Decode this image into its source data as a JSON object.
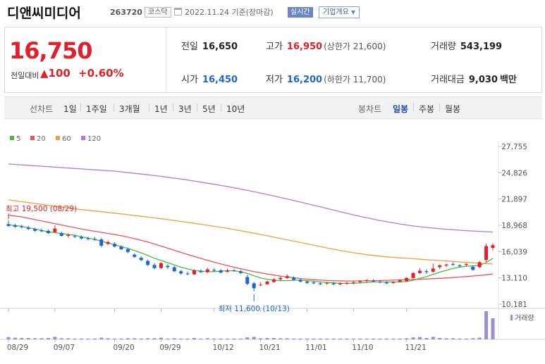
{
  "header": {
    "name": "디앤씨미디어",
    "code": "263720",
    "market": "코스닥",
    "date": "2022.11.24 기준(장마감)",
    "realtime": "실시간",
    "corp_overview": "기업개요",
    "calendar_icon": "calendar-icon",
    "caret_icon": "chevron-down-icon"
  },
  "summary": {
    "price": "16,750",
    "change_label": "전일대비",
    "change_arrow": "▲",
    "change_value": "100",
    "change_pct": "+0.60%",
    "prev": {
      "label": "전일",
      "value": "16,650"
    },
    "open": {
      "label": "시가",
      "value": "16,450"
    },
    "high": {
      "label": "고가",
      "value": "16,950",
      "sub": "(상한가 21,600)"
    },
    "low": {
      "label": "저가",
      "value": "16,200",
      "sub": "(하한가 11,700)"
    },
    "volume": {
      "label": "거래량",
      "value": "543,199"
    },
    "amount": {
      "label": "거래대금",
      "value": "9,030",
      "unit": "백만"
    },
    "colors": {
      "up": "#e0202a",
      "down": "#1c64d4"
    }
  },
  "period_bar": {
    "line_label": "선차트",
    "line_items": [
      "1일",
      "1주일",
      "3개월",
      "1년",
      "3년",
      "5년",
      "10년"
    ],
    "candle_label": "봉차트",
    "candle_items": [
      "일봉",
      "주봉",
      "월봉"
    ],
    "candle_selected": "일봉"
  },
  "chart_data": {
    "type": "candlestick",
    "legend": [
      {
        "name": "5",
        "color": "#4cb944"
      },
      {
        "name": "20",
        "color": "#ea5455"
      },
      {
        "name": "60",
        "color": "#f59d3d"
      },
      {
        "name": "120",
        "color": "#b07ad8"
      }
    ],
    "y_ticks": [
      "27,755",
      "24,826",
      "21,897",
      "18,968",
      "16,039",
      "13,110",
      "10,181"
    ],
    "ylim": [
      10181,
      27755
    ],
    "x_ticks": [
      "08/29",
      "09/07",
      "09/20",
      "09/29",
      "10/12",
      "10/21",
      "11/01",
      "11/10",
      "11/21"
    ],
    "annotation_high": "최고 19,500 (08/29)",
    "annotation_low": "최저 11,600 (10/13)",
    "volume_label": "거래량",
    "candles": [
      [
        19100,
        19500,
        18800,
        18900
      ],
      [
        18950,
        19150,
        18700,
        18800
      ],
      [
        18850,
        19050,
        18600,
        18750
      ],
      [
        18700,
        18900,
        18450,
        18550
      ],
      [
        18550,
        18700,
        18250,
        18350
      ],
      [
        18400,
        18600,
        18200,
        18300
      ],
      [
        18350,
        18500,
        18000,
        18100
      ],
      [
        18200,
        18950,
        18100,
        18600
      ],
      [
        18100,
        18250,
        17700,
        17800
      ],
      [
        17800,
        18050,
        17600,
        17900
      ],
      [
        17750,
        17950,
        17550,
        17700
      ],
      [
        17650,
        17850,
        17400,
        17500
      ],
      [
        17500,
        17700,
        17300,
        17450
      ],
      [
        17450,
        17650,
        17250,
        17350
      ],
      [
        17400,
        17550,
        16500,
        16700
      ],
      [
        16900,
        17250,
        16800,
        17100
      ],
      [
        16900,
        17100,
        16500,
        16600
      ],
      [
        16600,
        16750,
        16200,
        16300
      ],
      [
        16300,
        16500,
        15850,
        16000
      ],
      [
        15700,
        15850,
        15350,
        15450
      ],
      [
        15350,
        15500,
        14950,
        15100
      ],
      [
        15000,
        15150,
        14450,
        14550
      ],
      [
        14550,
        14750,
        14050,
        14200
      ],
      [
        14200,
        14850,
        14100,
        14750
      ],
      [
        14450,
        14650,
        14100,
        14300
      ],
      [
        14300,
        14450,
        13750,
        13850
      ],
      [
        13850,
        14000,
        13450,
        13600
      ],
      [
        13600,
        13800,
        13400,
        13550
      ],
      [
        13500,
        14050,
        13450,
        13950
      ],
      [
        13900,
        14050,
        13650,
        13750
      ],
      [
        13750,
        14200,
        13650,
        14050
      ],
      [
        14000,
        14200,
        13800,
        13900
      ],
      [
        13950,
        14100,
        13600,
        13700
      ],
      [
        13800,
        14150,
        13700,
        13950
      ],
      [
        13950,
        14100,
        13800,
        13900
      ],
      [
        13850,
        14000,
        13550,
        13650
      ],
      [
        13200,
        13450,
        12300,
        12450
      ],
      [
        12500,
        12650,
        11600,
        11950
      ],
      [
        12350,
        12600,
        12200,
        12350
      ],
      [
        12400,
        12800,
        12350,
        12700
      ],
      [
        12650,
        13050,
        12550,
        12950
      ],
      [
        12950,
        13250,
        12800,
        13100
      ],
      [
        13100,
        13500,
        13000,
        13300
      ],
      [
        13150,
        13300,
        12800,
        12900
      ],
      [
        12900,
        13050,
        12600,
        12700
      ],
      [
        12700,
        12850,
        12450,
        12550
      ],
      [
        12600,
        12750,
        12400,
        12500
      ],
      [
        12500,
        12650,
        12300,
        12400
      ],
      [
        12500,
        12650,
        12350,
        12550
      ],
      [
        12500,
        12650,
        12300,
        12400
      ],
      [
        12400,
        12600,
        12300,
        12500
      ],
      [
        12450,
        12650,
        12350,
        12550
      ],
      [
        12550,
        12750,
        12400,
        12600
      ],
      [
        12650,
        12850,
        12500,
        12750
      ],
      [
        12800,
        13000,
        12650,
        12850
      ],
      [
        12800,
        12950,
        12600,
        12700
      ],
      [
        12700,
        12850,
        12500,
        12600
      ],
      [
        12600,
        12750,
        12400,
        12500
      ],
      [
        12550,
        12750,
        12450,
        12650
      ],
      [
        12700,
        12950,
        12600,
        12850
      ],
      [
        12750,
        13150,
        12650,
        13100
      ],
      [
        13100,
        13750,
        13000,
        13650
      ],
      [
        13650,
        14200,
        13550,
        13900
      ],
      [
        13850,
        14050,
        13550,
        13750
      ],
      [
        13800,
        14700,
        13700,
        14150
      ],
      [
        14300,
        14600,
        14100,
        14500
      ],
      [
        14500,
        14700,
        14300,
        14600
      ],
      [
        14650,
        14850,
        14450,
        14600
      ],
      [
        14500,
        14650,
        14300,
        14400
      ],
      [
        14550,
        14750,
        14400,
        14650
      ],
      [
        14350,
        14500,
        13900,
        14000
      ],
      [
        14300,
        15000,
        14200,
        14850
      ],
      [
        15100,
        16900,
        14900,
        16650
      ],
      [
        16450,
        16950,
        16200,
        16750
      ]
    ],
    "ma": {
      "120": [
        25800,
        25750,
        25700,
        25650,
        25600,
        25550,
        25500,
        25450,
        25400,
        25350,
        25300,
        25250,
        25200,
        25150,
        25100,
        25050,
        25000,
        24920,
        24840,
        24760,
        24680,
        24600,
        24510,
        24420,
        24320,
        24220,
        24120,
        24010,
        23900,
        23780,
        23660,
        23540,
        23410,
        23280,
        23150,
        23010,
        22860,
        22710,
        22560,
        22400,
        22240,
        22070,
        21900,
        21730,
        21560,
        21380,
        21200,
        21020,
        20840,
        20660,
        20480,
        20300,
        20130,
        19960,
        19800,
        19650,
        19500,
        19370,
        19240,
        19120,
        19000,
        18900,
        18810,
        18730,
        18660,
        18590,
        18530,
        18470,
        18420,
        18370,
        18330,
        18290,
        18250,
        18220
      ],
      "60": [
        21800,
        21700,
        21600,
        21500,
        21400,
        21300,
        21200,
        21100,
        21000,
        20900,
        20800,
        20720,
        20640,
        20560,
        20480,
        20400,
        20320,
        20240,
        20150,
        20060,
        19970,
        19880,
        19790,
        19700,
        19600,
        19500,
        19400,
        19300,
        19190,
        19080,
        18970,
        18860,
        18740,
        18620,
        18490,
        18360,
        18230,
        18090,
        17950,
        17800,
        17650,
        17500,
        17350,
        17200,
        17050,
        16900,
        16750,
        16600,
        16450,
        16300,
        16160,
        16030,
        15910,
        15800,
        15700,
        15610,
        15530,
        15460,
        15400,
        15340,
        15290,
        15240,
        15190,
        15140,
        15090,
        15040,
        14990,
        14940,
        14890,
        14840,
        14790,
        14740,
        14700,
        14660
      ],
      "20": [
        20100,
        20000,
        19900,
        19750,
        19600,
        19450,
        19300,
        19150,
        19000,
        18850,
        18700,
        18550,
        18420,
        18300,
        18180,
        18060,
        17940,
        17800,
        17650,
        17480,
        17300,
        17100,
        16880,
        16650,
        16420,
        16180,
        15950,
        15720,
        15500,
        15280,
        15070,
        14860,
        14660,
        14470,
        14290,
        14120,
        13960,
        13810,
        13670,
        13540,
        13420,
        13310,
        13210,
        13120,
        13040,
        12970,
        12910,
        12860,
        12820,
        12790,
        12770,
        12760,
        12760,
        12770,
        12780,
        12800,
        12820,
        12840,
        12860,
        12880,
        12900,
        12930,
        12960,
        12990,
        13020,
        13060,
        13100,
        13150,
        13200,
        13260,
        13320,
        13380,
        13450,
        13550
      ],
      "5": [
        19000,
        18950,
        18850,
        18700,
        18550,
        18400,
        18250,
        18150,
        18050,
        17950,
        17850,
        17700,
        17550,
        17400,
        17200,
        17000,
        16800,
        16600,
        16400,
        16150,
        15900,
        15600,
        15300,
        15050,
        14800,
        14550,
        14300,
        14100,
        13950,
        13850,
        13800,
        13800,
        13850,
        13900,
        13900,
        13800,
        13600,
        13350,
        13100,
        12950,
        12850,
        12800,
        12800,
        12850,
        12850,
        12800,
        12750,
        12650,
        12600,
        12550,
        12500,
        12500,
        12500,
        12550,
        12600,
        12650,
        12650,
        12650,
        12650,
        12650,
        12700,
        12850,
        13050,
        13250,
        13500,
        13750,
        13950,
        14150,
        14300,
        14400,
        14450,
        14500,
        14800,
        15300
      ]
    },
    "volume": [
      8,
      6,
      5,
      5,
      4,
      4,
      5,
      9,
      4,
      4,
      3,
      3,
      3,
      3,
      6,
      4,
      3,
      3,
      4,
      4,
      3,
      4,
      4,
      6,
      3,
      4,
      3,
      3,
      5,
      3,
      4,
      3,
      3,
      3,
      3,
      3,
      7,
      9,
      4,
      5,
      5,
      4,
      4,
      3,
      3,
      3,
      3,
      3,
      3,
      3,
      3,
      3,
      3,
      3,
      3,
      3,
      3,
      3,
      3,
      3,
      4,
      7,
      8,
      5,
      9,
      5,
      4,
      4,
      3,
      3,
      4,
      6,
      100,
      75
    ]
  }
}
